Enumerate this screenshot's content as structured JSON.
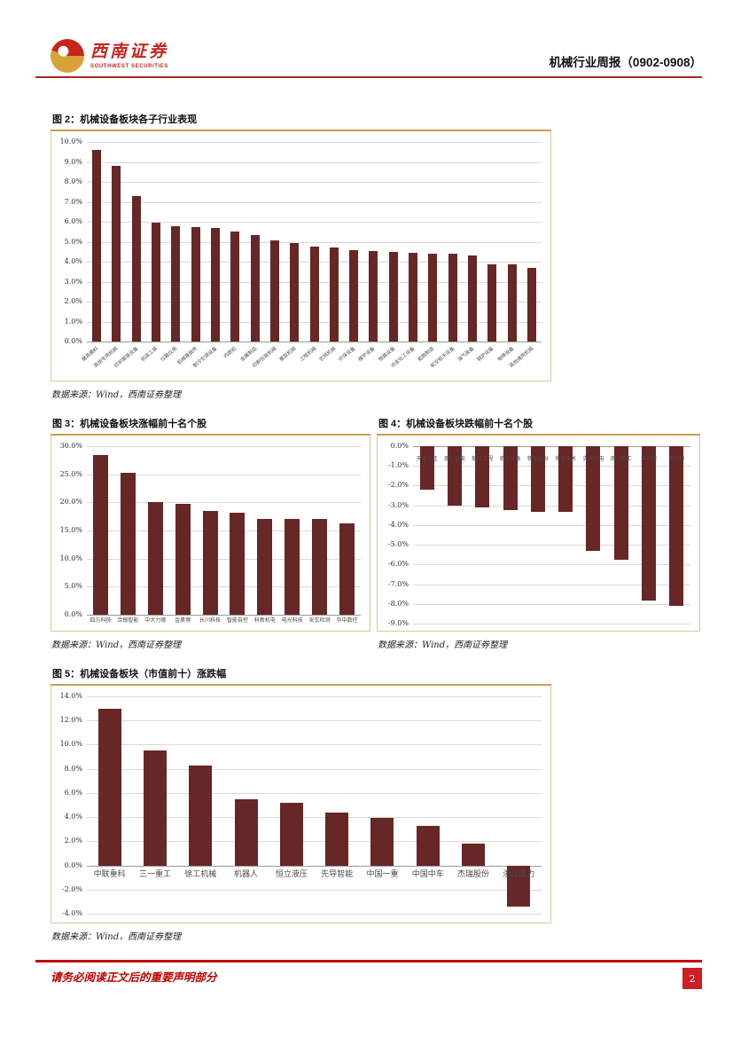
{
  "header": {
    "logo_cn": "西南证券",
    "logo_en": "SOUTHWEST SECURITIES",
    "report_title": "机械行业周报（0902-0908）"
  },
  "colors": {
    "bar": "#662726",
    "brand_red": "#c8251d",
    "gold_rule": "#c89e4e",
    "footer_red": "#c00000"
  },
  "chart_data": [
    {
      "type": "bar",
      "title": "图 2：机械设备板块各子行业表现",
      "categories": [
        "磨具磨料",
        "其他专用机械",
        "纺织服装设备",
        "机床工具",
        "仪器仪表",
        "机械基础件",
        "制冷空调设备",
        "内燃机",
        "金属制品",
        "印刷包装机械",
        "重型机械",
        "工程机械",
        "农用机械",
        "环保设备",
        "楼宇设备",
        "铁路设备",
        "冶金化工设备",
        "船舶制造",
        "航空航天设备",
        "油气装备",
        "锅炉设备",
        "电梯设备",
        "其他通用机械"
      ],
      "values": [
        9.6,
        8.8,
        7.3,
        5.95,
        5.8,
        5.75,
        5.7,
        5.5,
        5.35,
        5.05,
        4.95,
        4.75,
        4.7,
        4.6,
        4.55,
        4.5,
        4.45,
        4.4,
        4.4,
        4.3,
        3.85,
        3.85,
        3.7
      ],
      "ylim": [
        0,
        10
      ],
      "ytick_step": 1,
      "grid": true,
      "legend": "none",
      "source": "数据来源：Wind，西南证券整理"
    },
    {
      "type": "bar",
      "title": "图 3：机械设备板块涨幅前十名个股",
      "categories": [
        "四方科技",
        "合锻智能",
        "中大力德",
        "金奥博",
        "长川科技",
        "智能自控",
        "科新机电",
        "电光科技",
        "安车检测",
        "华中数控"
      ],
      "values": [
        28.5,
        25.2,
        20.1,
        19.8,
        18.5,
        18.2,
        17.1,
        17.0,
        17.0,
        16.3
      ],
      "ylim": [
        0,
        30
      ],
      "ytick_step": 5,
      "grid": true,
      "legend": "none",
      "source": "数据来源：Wind，西南证券整理"
    },
    {
      "type": "bar",
      "title": "图 4：机械设备板块跌幅前十名个股",
      "categories": [
        "天宜上佳",
        "瀚川智能",
        "航天工程",
        "南兴装备",
        "新柴股份",
        "先惠技术",
        "克来机电",
        "南方精工",
        "沃尔德",
        "铂力特"
      ],
      "values": [
        -2.2,
        -3.0,
        -3.1,
        -3.25,
        -3.35,
        -3.35,
        -5.3,
        -5.75,
        -7.85,
        -8.1
      ],
      "ylim": [
        -9,
        0
      ],
      "ytick_step": 1,
      "grid": true,
      "legend": "none",
      "source": "数据来源：Wind，西南证券整理"
    },
    {
      "type": "bar",
      "title": "图 5：机械设备板块（市值前十）涨跌幅",
      "categories": [
        "中联重科",
        "三一重工",
        "徐工机械",
        "机器人",
        "恒立液压",
        "先导智能",
        "中国一重",
        "中国中车",
        "杰瑞股份",
        "浙江鼎力"
      ],
      "values": [
        13.0,
        9.5,
        8.3,
        5.45,
        5.15,
        4.35,
        3.95,
        3.3,
        1.8,
        -3.4
      ],
      "ylim": [
        -4,
        14
      ],
      "ytick_step": 2,
      "grid": true,
      "legend": "none",
      "source": "数据来源：Wind，西南证券整理"
    }
  ],
  "footer": {
    "disclaimer": "请务必阅读正文后的重要声明部分",
    "page_number": "2"
  }
}
